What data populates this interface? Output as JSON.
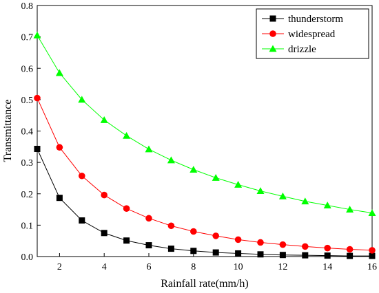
{
  "chart_data": {
    "type": "line",
    "xlabel": "Rainfall rate(mm/h)",
    "ylabel": "Transmittance",
    "xlim": [
      1,
      16
    ],
    "ylim": [
      0,
      0.8
    ],
    "xticks": [
      2,
      4,
      6,
      8,
      10,
      12,
      14,
      16
    ],
    "yticks": [
      0,
      0.1,
      0.2,
      0.3,
      0.4,
      0.5,
      0.6,
      0.7,
      0.8
    ],
    "ytick_labels": [
      "0.0",
      "0.1",
      "0.2",
      "0.3",
      "0.4",
      "0.5",
      "0.6",
      "0.7",
      "0.8"
    ],
    "legend_position": "top-right",
    "grid": false,
    "x": [
      1,
      2,
      3,
      4,
      5,
      6,
      7,
      8,
      9,
      10,
      11,
      12,
      13,
      14,
      15,
      16
    ],
    "series": [
      {
        "name": "thunderstorm",
        "color": "#000000",
        "marker": "square",
        "values": [
          0.343,
          0.187,
          0.115,
          0.075,
          0.051,
          0.036,
          0.025,
          0.018,
          0.013,
          0.01,
          0.007,
          0.005,
          0.004,
          0.003,
          0.002,
          0.002
        ]
      },
      {
        "name": "widespread",
        "color": "#ff0000",
        "marker": "circle",
        "values": [
          0.505,
          0.348,
          0.257,
          0.196,
          0.153,
          0.122,
          0.098,
          0.08,
          0.066,
          0.054,
          0.045,
          0.038,
          0.032,
          0.027,
          0.023,
          0.02
        ]
      },
      {
        "name": "drizzle",
        "color": "#00ff00",
        "marker": "triangle",
        "values": [
          0.705,
          0.585,
          0.5,
          0.435,
          0.385,
          0.342,
          0.307,
          0.277,
          0.251,
          0.229,
          0.209,
          0.192,
          0.176,
          0.163,
          0.15,
          0.139
        ]
      }
    ]
  }
}
